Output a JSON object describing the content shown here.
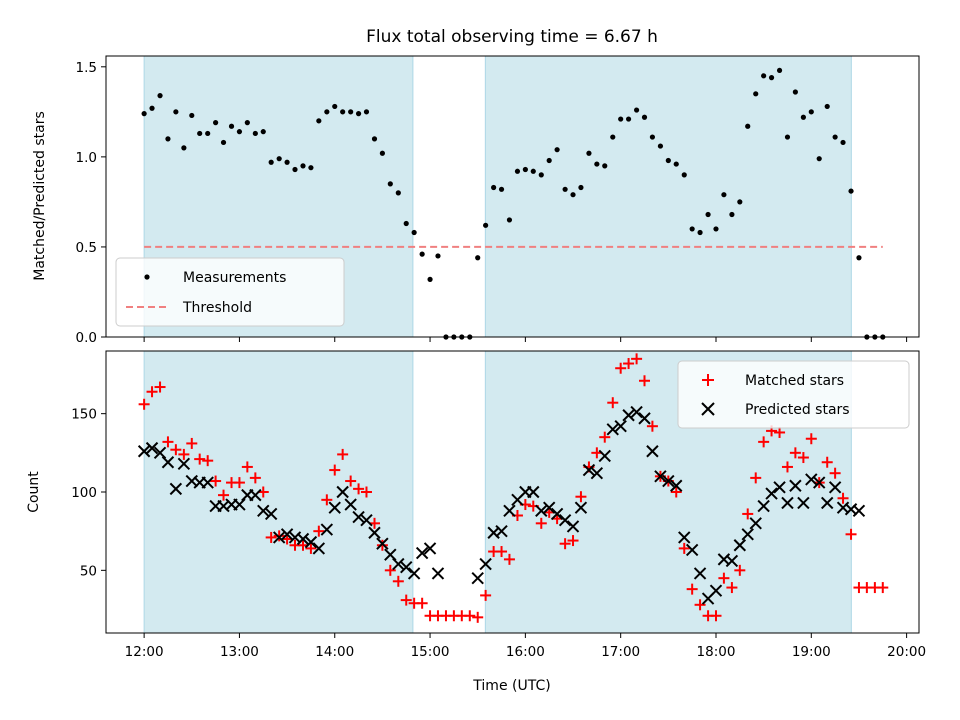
{
  "chart_data": [
    {
      "type": "scatter",
      "title": "Flux total observing time = 6.67 h",
      "ylabel": "Matched/Predicted stars",
      "xlabel": "",
      "ylim": [
        0,
        1.56
      ],
      "xlim": [
        11.6,
        20.13
      ],
      "yticks": [
        0,
        0.5,
        1.0,
        1.5
      ],
      "ytick_labels": [
        "0.0",
        "0.5",
        "1.0",
        "1.5"
      ],
      "legend_position": "lower-left",
      "shaded_intervals": [
        [
          12.0,
          14.82
        ],
        [
          15.58,
          19.42
        ]
      ],
      "shade_color": "#d3eaf0",
      "series": [
        {
          "name": "Measurements",
          "marker": "dot",
          "color": "#000000",
          "x": [
            12.0,
            12.083,
            12.167,
            12.25,
            12.333,
            12.417,
            12.5,
            12.583,
            12.667,
            12.75,
            12.833,
            12.917,
            13.0,
            13.083,
            13.167,
            13.25,
            13.333,
            13.417,
            13.5,
            13.583,
            13.667,
            13.75,
            13.833,
            13.917,
            14.0,
            14.083,
            14.167,
            14.25,
            14.333,
            14.417,
            14.5,
            14.583,
            14.667,
            14.75,
            14.833,
            14.917,
            15.0,
            15.083,
            15.167,
            15.25,
            15.333,
            15.417,
            15.5,
            15.583,
            15.667,
            15.75,
            15.833,
            15.917,
            16.0,
            16.083,
            16.167,
            16.25,
            16.333,
            16.417,
            16.5,
            16.583,
            16.667,
            16.75,
            16.833,
            16.917,
            17.0,
            17.083,
            17.167,
            17.25,
            17.333,
            17.417,
            17.5,
            17.583,
            17.667,
            17.75,
            17.833,
            17.917,
            18.0,
            18.083,
            18.167,
            18.25,
            18.333,
            18.417,
            18.5,
            18.583,
            18.667,
            18.75,
            18.833,
            18.917,
            19.0,
            19.083,
            19.167,
            19.25,
            19.333,
            19.417,
            19.5,
            19.583,
            19.667,
            19.75
          ],
          "y": [
            1.24,
            1.27,
            1.34,
            1.1,
            1.25,
            1.05,
            1.23,
            1.13,
            1.13,
            1.19,
            1.08,
            1.17,
            1.14,
            1.19,
            1.13,
            1.14,
            0.97,
            0.99,
            0.97,
            0.93,
            0.95,
            0.94,
            1.2,
            1.25,
            1.28,
            1.25,
            1.25,
            1.24,
            1.25,
            1.1,
            1.02,
            0.85,
            0.8,
            0.63,
            0.58,
            0.46,
            0.32,
            0.45,
            0.0,
            0.0,
            0.0,
            0.0,
            0.44,
            0.62,
            0.83,
            0.82,
            0.65,
            0.92,
            0.93,
            0.92,
            0.9,
            0.98,
            1.04,
            0.82,
            0.79,
            0.83,
            1.02,
            0.96,
            0.95,
            1.11,
            1.21,
            1.21,
            1.26,
            1.22,
            1.11,
            1.06,
            0.98,
            0.96,
            0.9,
            0.6,
            0.58,
            0.68,
            0.6,
            0.79,
            0.68,
            0.75,
            1.17,
            1.35,
            1.45,
            1.44,
            1.48,
            1.11,
            1.36,
            1.22,
            1.25,
            0.99,
            1.28,
            1.11,
            1.08,
            0.81,
            0.44,
            0.0,
            0.0,
            0.0
          ]
        },
        {
          "name": "Threshold",
          "marker": "dashed-line",
          "color": "#f08080",
          "x": [
            12.0,
            19.75
          ],
          "y": [
            0.5,
            0.5
          ]
        }
      ],
      "legend_labels": [
        "Measurements",
        "Threshold"
      ]
    },
    {
      "type": "scatter",
      "title": "",
      "xlabel": "Time (UTC)",
      "ylabel": "Count",
      "ylim": [
        10,
        190
      ],
      "xlim": [
        11.6,
        20.13
      ],
      "yticks": [
        50,
        100,
        150
      ],
      "ytick_labels": [
        "50",
        "100",
        "150"
      ],
      "xticks": [
        12,
        13,
        14,
        15,
        16,
        17,
        18,
        19,
        20
      ],
      "xtick_labels": [
        "12:00",
        "13:00",
        "14:00",
        "15:00",
        "16:00",
        "17:00",
        "18:00",
        "19:00",
        "20:00"
      ],
      "legend_position": "upper-right",
      "shaded_intervals": [
        [
          12.0,
          14.82
        ],
        [
          15.58,
          19.42
        ]
      ],
      "shade_color": "#d3eaf0",
      "series": [
        {
          "name": "Matched stars",
          "marker": "plus",
          "color": "#ff0000",
          "x": [
            12.0,
            12.083,
            12.167,
            12.25,
            12.333,
            12.417,
            12.5,
            12.583,
            12.667,
            12.75,
            12.833,
            12.917,
            13.0,
            13.083,
            13.167,
            13.25,
            13.333,
            13.417,
            13.5,
            13.583,
            13.667,
            13.75,
            13.833,
            13.917,
            14.0,
            14.083,
            14.167,
            14.25,
            14.333,
            14.417,
            14.5,
            14.583,
            14.667,
            14.75,
            14.833,
            14.917,
            15.0,
            15.083,
            15.167,
            15.25,
            15.333,
            15.417,
            15.5,
            15.583,
            15.667,
            15.75,
            15.833,
            15.917,
            16.0,
            16.083,
            16.167,
            16.25,
            16.333,
            16.417,
            16.5,
            16.583,
            16.667,
            16.75,
            16.833,
            16.917,
            17.0,
            17.083,
            17.167,
            17.25,
            17.333,
            17.417,
            17.5,
            17.583,
            17.667,
            17.75,
            17.833,
            17.917,
            18.0,
            18.083,
            18.167,
            18.25,
            18.333,
            18.417,
            18.5,
            18.583,
            18.667,
            18.75,
            18.833,
            18.917,
            19.0,
            19.083,
            19.167,
            19.25,
            19.333,
            19.417,
            19.5,
            19.583,
            19.667,
            19.75
          ],
          "y": [
            156,
            164,
            167,
            132,
            127,
            124,
            131,
            121,
            120,
            107,
            98,
            106,
            106,
            116,
            109,
            100,
            71,
            72,
            70,
            66,
            66,
            64,
            75,
            95,
            114,
            124,
            107,
            102,
            100,
            80,
            66,
            50,
            43,
            31,
            29,
            29,
            21,
            21,
            21,
            21,
            21,
            21,
            20,
            34,
            62,
            62,
            57,
            85,
            92,
            91,
            80,
            87,
            83,
            67,
            69,
            97,
            116,
            125,
            135,
            157,
            179,
            182,
            185,
            171,
            142,
            110,
            107,
            100,
            64,
            38,
            28,
            21,
            21,
            45,
            39,
            50,
            86,
            109,
            132,
            139,
            138,
            116,
            125,
            122,
            134,
            106,
            119,
            112,
            96,
            73,
            39,
            39,
            39,
            39
          ]
        },
        {
          "name": "Predicted stars",
          "marker": "x",
          "color": "#000000",
          "x": [
            12.0,
            12.083,
            12.167,
            12.25,
            12.333,
            12.417,
            12.5,
            12.583,
            12.667,
            12.75,
            12.833,
            12.917,
            13.0,
            13.083,
            13.167,
            13.25,
            13.333,
            13.417,
            13.5,
            13.583,
            13.667,
            13.75,
            13.833,
            13.917,
            14.0,
            14.083,
            14.167,
            14.25,
            14.333,
            14.417,
            14.5,
            14.583,
            14.667,
            14.75,
            14.833,
            14.917,
            15.0,
            15.083,
            15.5,
            15.583,
            15.667,
            15.75,
            15.833,
            15.917,
            16.0,
            16.083,
            16.167,
            16.25,
            16.333,
            16.417,
            16.5,
            16.583,
            16.667,
            16.75,
            16.833,
            16.917,
            17.0,
            17.083,
            17.167,
            17.25,
            17.333,
            17.417,
            17.5,
            17.583,
            17.667,
            17.75,
            17.833,
            17.917,
            18.0,
            18.083,
            18.167,
            18.25,
            18.333,
            18.417,
            18.5,
            18.583,
            18.667,
            18.75,
            18.833,
            18.917,
            19.0,
            19.083,
            19.167,
            19.25,
            19.333,
            19.417,
            19.5
          ],
          "y": [
            126,
            128,
            125,
            119,
            102,
            118,
            107,
            106,
            106,
            91,
            91,
            92,
            92,
            98,
            98,
            88,
            86,
            71,
            73,
            71,
            70,
            68,
            64,
            76,
            90,
            100,
            92,
            84,
            82,
            74,
            67,
            60,
            54,
            52,
            48,
            61,
            64,
            48,
            45,
            54,
            74,
            75,
            88,
            95,
            100,
            100,
            88,
            90,
            86,
            82,
            78,
            90,
            114,
            112,
            123,
            140,
            142,
            149,
            151,
            147,
            126,
            110,
            107,
            104,
            71,
            63,
            48,
            32,
            37,
            57,
            56,
            66,
            73,
            80,
            91,
            99,
            103,
            93,
            104,
            93,
            108,
            106,
            93,
            103,
            90,
            89,
            88
          ]
        }
      ],
      "legend_labels": [
        "Matched stars",
        "Predicted stars"
      ]
    }
  ]
}
